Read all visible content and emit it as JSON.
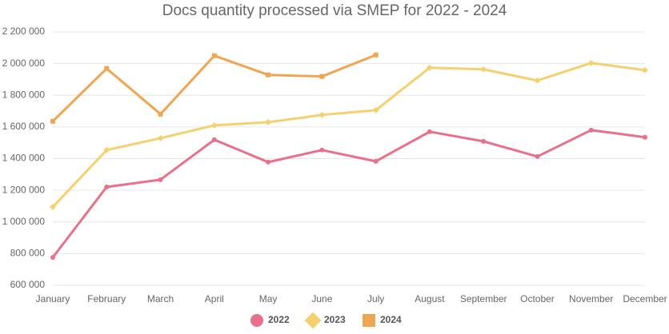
{
  "chart_data": {
    "type": "line",
    "title": "Docs quantity processed via SMEP for 2022 - 2024",
    "categories": [
      "January",
      "February",
      "March",
      "April",
      "May",
      "June",
      "July",
      "August",
      "September",
      "October",
      "November",
      "December"
    ],
    "series": [
      {
        "name": "2022",
        "color": "#e8708a",
        "marker": "circle",
        "values": [
          776000,
          1221000,
          1267000,
          1519000,
          1378000,
          1454000,
          1383000,
          1570000,
          1509000,
          1413000,
          1580000,
          1535000
        ]
      },
      {
        "name": "2023",
        "color": "#f5d06f",
        "marker": "diamond",
        "values": [
          1095000,
          1454000,
          1529000,
          1610000,
          1630000,
          1676000,
          1706000,
          1974000,
          1964000,
          1893000,
          2004000,
          1959000
        ]
      },
      {
        "name": "2024",
        "color": "#f0a550",
        "marker": "square",
        "values": [
          1636000,
          1969000,
          1681000,
          2050000,
          1929000,
          1919000,
          2055000,
          null,
          null,
          null,
          null,
          null
        ]
      }
    ],
    "ylim": [
      600000,
      2200000
    ],
    "yticks": [
      {
        "value": 600000,
        "label": "600 000"
      },
      {
        "value": 800000,
        "label": "800 000"
      },
      {
        "value": 1000000,
        "label": "1 000 000"
      },
      {
        "value": 1200000,
        "label": "1 200 000"
      },
      {
        "value": 1400000,
        "label": "1 400 000"
      },
      {
        "value": 1600000,
        "label": "1 600 000"
      },
      {
        "value": 1800000,
        "label": "1 800 000"
      },
      {
        "value": 2000000,
        "label": "2 000 000"
      },
      {
        "value": 2200000,
        "label": "2 200 000"
      }
    ],
    "grid": true,
    "legend": "bottom"
  }
}
